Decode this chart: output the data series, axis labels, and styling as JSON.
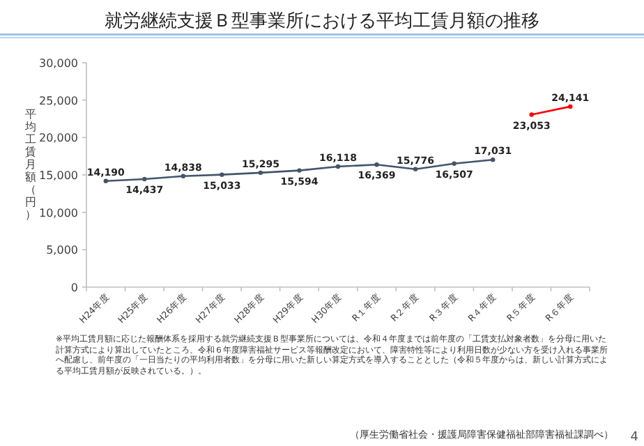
{
  "chart_data": {
    "type": "line",
    "title": "就労継続支援Ｂ型事業所における平均工賃月額の推移",
    "ylabel": "平均工賃月額（円）",
    "categories": [
      "H24年度",
      "H25年度",
      "H26年度",
      "H27年度",
      "H28年度",
      "H29年度",
      "H30年度",
      "R１年度",
      "R２年度",
      "R３年度",
      "R４年度",
      "R５年度",
      "R６年度"
    ],
    "series": [
      {
        "color": "#44546a",
        "values": [
          14190,
          14437,
          14838,
          15033,
          15295,
          15594,
          16118,
          16369,
          15776,
          16507,
          17031,
          null,
          null
        ],
        "value_labels": [
          "14,190",
          "14,437",
          "14,838",
          "15,033",
          "15,295",
          "15,594",
          "16,118",
          "16,369",
          "15,776",
          "16,507",
          "17,031",
          null,
          null
        ]
      },
      {
        "color": "#ff0000",
        "values": [
          null,
          null,
          null,
          null,
          null,
          null,
          null,
          null,
          null,
          null,
          null,
          23053,
          24141
        ],
        "value_labels": [
          null,
          null,
          null,
          null,
          null,
          null,
          null,
          null,
          null,
          null,
          null,
          "23,053",
          "24,141"
        ]
      }
    ],
    "ylim": [
      0,
      30000
    ],
    "yticks": [
      {
        "value": 0,
        "label": "0"
      },
      {
        "value": 5000,
        "label": "5,000"
      },
      {
        "value": 10000,
        "label": "10,000"
      },
      {
        "value": 15000,
        "label": "15,000"
      },
      {
        "value": 20000,
        "label": "20,000"
      },
      {
        "value": 25000,
        "label": "25,000"
      },
      {
        "value": 30000,
        "label": "30,000"
      }
    ],
    "marker": "circle",
    "annotations": [
      "※平均工賃月額に応じた報酬体系を採用する就労継続支援Ｂ型事業所については、令和４年度までは前年度の「工賃支払対象者数」を分母に用いた計算方式により算出していたところ、令和６年度障害福祉サービス等報酬改定において、障害特性等により利用日数が少ない方を受け入れる事業所へ配慮し、前年度の「一日当たりの平均利用者数」を分母に用いた新しい算定方式を導入することとした（令和５年度からは、新しい計算方式による平均工賃月額が反映されている。）。",
      "（厚生労働省社会・援護局障害保健福祉部障害福祉課調べ）",
      "4"
    ]
  }
}
